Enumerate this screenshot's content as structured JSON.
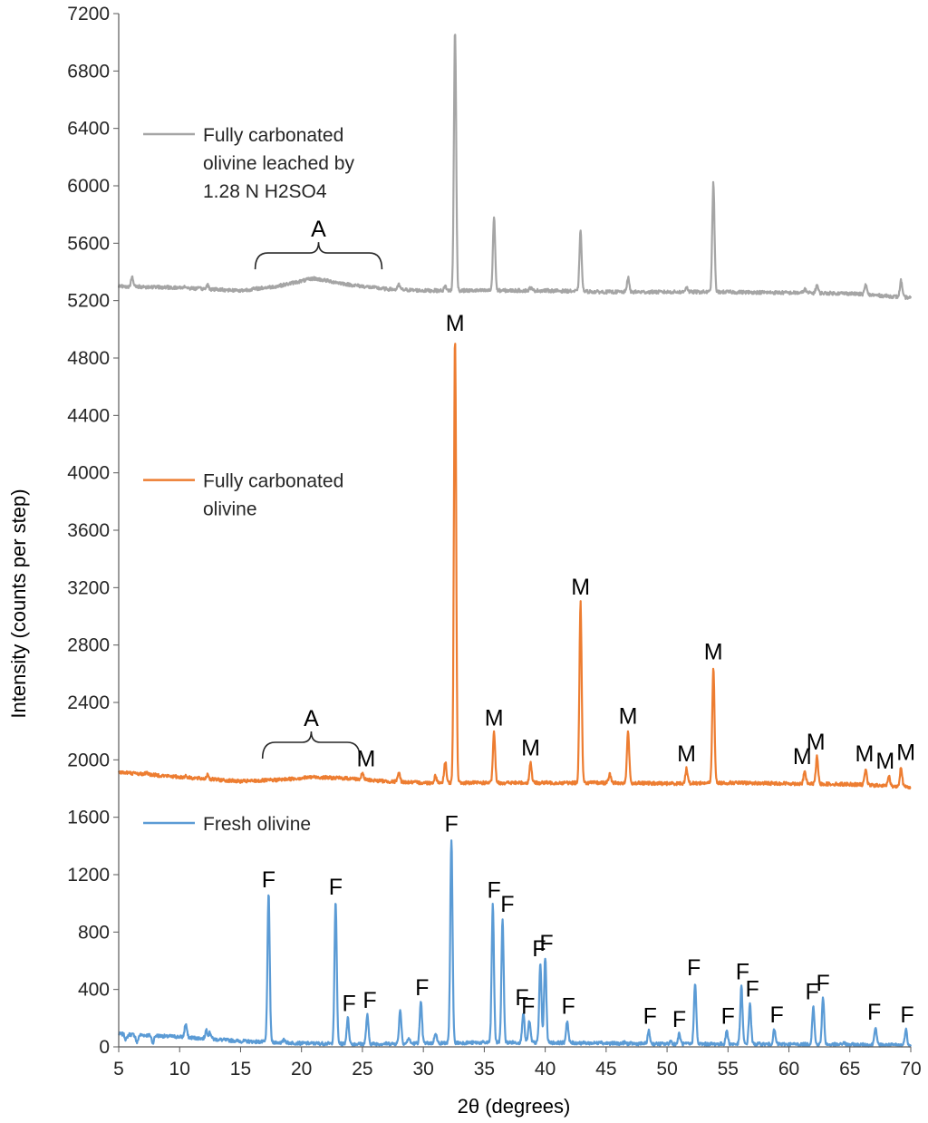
{
  "chart_data": {
    "type": "line",
    "title": "",
    "xlabel": "2θ (degrees)",
    "ylabel": "Intensity (counts per step)",
    "xlim": [
      5,
      70
    ],
    "ylim": [
      0,
      7200
    ],
    "x_ticks": [
      5,
      10,
      15,
      20,
      25,
      30,
      35,
      40,
      45,
      50,
      55,
      60,
      65,
      70
    ],
    "y_ticks": [
      0,
      400,
      800,
      1200,
      1600,
      2000,
      2400,
      2800,
      3200,
      3600,
      4000,
      4400,
      4800,
      5200,
      5600,
      6000,
      6400,
      6800,
      7200
    ],
    "grid": false,
    "legend": [
      {
        "name": "Fully carbonated olivine leached by 1.28 N H2SO4",
        "lines": [
          "Fully carbonated",
          "olivine leached by",
          "1.28 N H2SO4"
        ],
        "color": "#a5a5a5",
        "legend_y": 6360
      },
      {
        "name": "Fully carbonated olivine",
        "lines": [
          "Fully carbonated",
          "olivine"
        ],
        "color": "#ed7d31",
        "legend_y": 3950
      },
      {
        "name": "Fresh olivine",
        "lines": [
          "Fresh olivine"
        ],
        "color": "#5b9bd5",
        "legend_y": 1560
      }
    ],
    "series": [
      {
        "name": "Fresh olivine",
        "color": "#5b9bd5",
        "baseline": [
          [
            5,
            90
          ],
          [
            10,
            70
          ],
          [
            15,
            40
          ],
          [
            20,
            25
          ],
          [
            25,
            20
          ],
          [
            30,
            25
          ],
          [
            35,
            30
          ],
          [
            40,
            30
          ],
          [
            45,
            25
          ],
          [
            50,
            20
          ],
          [
            55,
            20
          ],
          [
            60,
            18
          ],
          [
            65,
            15
          ],
          [
            70,
            12
          ]
        ],
        "peaks": [
          [
            5.6,
            50
          ],
          [
            6.5,
            30
          ],
          [
            7.8,
            30
          ],
          [
            8.9,
            70
          ],
          [
            10.5,
            160
          ],
          [
            12.2,
            120
          ],
          [
            12.5,
            100
          ],
          [
            17.3,
            1060
          ],
          [
            18.6,
            50
          ],
          [
            22.8,
            1010
          ],
          [
            23.8,
            200
          ],
          [
            25.4,
            220
          ],
          [
            28.1,
            260
          ],
          [
            28.8,
            60
          ],
          [
            29.8,
            310
          ],
          [
            31.0,
            100
          ],
          [
            32.3,
            1450
          ],
          [
            35.7,
            990
          ],
          [
            36.5,
            890
          ],
          [
            38.2,
            240
          ],
          [
            38.7,
            180
          ],
          [
            39.6,
            580
          ],
          [
            40.0,
            620
          ],
          [
            41.8,
            180
          ],
          [
            44.5,
            40
          ],
          [
            46.5,
            30
          ],
          [
            48.5,
            110
          ],
          [
            50.3,
            40
          ],
          [
            51.0,
            90
          ],
          [
            52.3,
            450
          ],
          [
            54.9,
            110
          ],
          [
            56.1,
            420
          ],
          [
            56.8,
            300
          ],
          [
            58.8,
            120
          ],
          [
            62.0,
            280
          ],
          [
            62.8,
            340
          ],
          [
            64.5,
            30
          ],
          [
            67.1,
            140
          ],
          [
            69.6,
            120
          ]
        ],
        "labels": [
          {
            "x": 17.3,
            "y": 1060,
            "text": "F"
          },
          {
            "x": 22.8,
            "y": 1010,
            "text": "F"
          },
          {
            "x": 23.9,
            "y": 200,
            "text": "F"
          },
          {
            "x": 25.6,
            "y": 220,
            "text": "F"
          },
          {
            "x": 29.9,
            "y": 310,
            "text": "F"
          },
          {
            "x": 32.3,
            "y": 1450,
            "text": "F"
          },
          {
            "x": 35.8,
            "y": 990,
            "text": "F"
          },
          {
            "x": 36.9,
            "y": 890,
            "text": "F"
          },
          {
            "x": 38.1,
            "y": 240,
            "text": "F"
          },
          {
            "x": 38.6,
            "y": 180,
            "text": "F"
          },
          {
            "x": 39.5,
            "y": 580,
            "text": "F"
          },
          {
            "x": 40.1,
            "y": 620,
            "text": "F"
          },
          {
            "x": 41.9,
            "y": 180,
            "text": "F"
          },
          {
            "x": 48.6,
            "y": 110,
            "text": "F"
          },
          {
            "x": 51.0,
            "y": 90,
            "text": "F"
          },
          {
            "x": 52.2,
            "y": 450,
            "text": "F"
          },
          {
            "x": 55.0,
            "y": 110,
            "text": "F"
          },
          {
            "x": 56.2,
            "y": 420,
            "text": "F"
          },
          {
            "x": 57.0,
            "y": 300,
            "text": "F"
          },
          {
            "x": 59.0,
            "y": 120,
            "text": "F"
          },
          {
            "x": 61.9,
            "y": 280,
            "text": "F"
          },
          {
            "x": 62.8,
            "y": 340,
            "text": "F"
          },
          {
            "x": 67.0,
            "y": 140,
            "text": "F"
          },
          {
            "x": 69.7,
            "y": 120,
            "text": "F"
          }
        ]
      },
      {
        "name": "Fully carbonated olivine",
        "color": "#ed7d31",
        "baseline": [
          [
            5,
            1915
          ],
          [
            10,
            1880
          ],
          [
            15,
            1850
          ],
          [
            18,
            1860
          ],
          [
            21,
            1880
          ],
          [
            24,
            1870
          ],
          [
            27,
            1850
          ],
          [
            30,
            1840
          ],
          [
            35,
            1840
          ],
          [
            40,
            1840
          ],
          [
            45,
            1840
          ],
          [
            50,
            1835
          ],
          [
            55,
            1840
          ],
          [
            60,
            1835
          ],
          [
            65,
            1830
          ],
          [
            70,
            1810
          ]
        ],
        "peaks": [
          [
            7.3,
            1915
          ],
          [
            10.5,
            1890
          ],
          [
            12.3,
            1900
          ],
          [
            25.0,
            1905
          ],
          [
            28.0,
            1910
          ],
          [
            31.0,
            1890
          ],
          [
            31.8,
            1990
          ],
          [
            32.6,
            4940
          ],
          [
            35.8,
            2190
          ],
          [
            38.8,
            1980
          ],
          [
            42.9,
            3100
          ],
          [
            45.3,
            1900
          ],
          [
            46.8,
            2200
          ],
          [
            51.6,
            1940
          ],
          [
            53.8,
            2650
          ],
          [
            61.3,
            1920
          ],
          [
            62.3,
            2020
          ],
          [
            66.3,
            1940
          ],
          [
            68.2,
            1890
          ],
          [
            69.2,
            1950
          ]
        ],
        "labels": [
          {
            "x": 25.3,
            "y": 1905,
            "text": "M"
          },
          {
            "x": 32.6,
            "y": 4940,
            "text": "M"
          },
          {
            "x": 35.8,
            "y": 2190,
            "text": "M"
          },
          {
            "x": 38.8,
            "y": 1980,
            "text": "M"
          },
          {
            "x": 42.9,
            "y": 3100,
            "text": "M"
          },
          {
            "x": 46.8,
            "y": 2200,
            "text": "M"
          },
          {
            "x": 51.6,
            "y": 1940,
            "text": "M"
          },
          {
            "x": 53.8,
            "y": 2650,
            "text": "M"
          },
          {
            "x": 61.1,
            "y": 1920,
            "text": "M"
          },
          {
            "x": 62.2,
            "y": 2020,
            "text": "M"
          },
          {
            "x": 66.2,
            "y": 1940,
            "text": "M"
          },
          {
            "x": 67.9,
            "y": 1890,
            "text": "M"
          },
          {
            "x": 69.6,
            "y": 1950,
            "text": "M"
          }
        ],
        "annotations": [
          {
            "text": "A",
            "x_from": 16.8,
            "x_to": 24.8,
            "y": 1920
          }
        ]
      },
      {
        "name": "Fully carbonated olivine leached by 1.28 N H2SO4",
        "color": "#a5a5a5",
        "baseline": [
          [
            5,
            5300
          ],
          [
            10,
            5290
          ],
          [
            15,
            5270
          ],
          [
            18,
            5300
          ],
          [
            21,
            5355
          ],
          [
            24,
            5310
          ],
          [
            27,
            5280
          ],
          [
            30,
            5270
          ],
          [
            35,
            5270
          ],
          [
            40,
            5270
          ],
          [
            45,
            5260
          ],
          [
            50,
            5260
          ],
          [
            55,
            5260
          ],
          [
            60,
            5255
          ],
          [
            65,
            5250
          ],
          [
            70,
            5220
          ]
        ],
        "peaks": [
          [
            6.1,
            5360
          ],
          [
            10.4,
            5300
          ],
          [
            12.3,
            5310
          ],
          [
            28.0,
            5310
          ],
          [
            31.8,
            5300
          ],
          [
            32.6,
            7080
          ],
          [
            35.8,
            5780
          ],
          [
            38.8,
            5290
          ],
          [
            42.9,
            5680
          ],
          [
            46.8,
            5360
          ],
          [
            51.6,
            5300
          ],
          [
            53.8,
            6020
          ],
          [
            61.3,
            5280
          ],
          [
            62.3,
            5310
          ],
          [
            66.3,
            5310
          ],
          [
            69.2,
            5340
          ]
        ],
        "annotations": [
          {
            "text": "A",
            "x_from": 16.2,
            "x_to": 26.6,
            "y": 5330
          }
        ]
      }
    ]
  }
}
